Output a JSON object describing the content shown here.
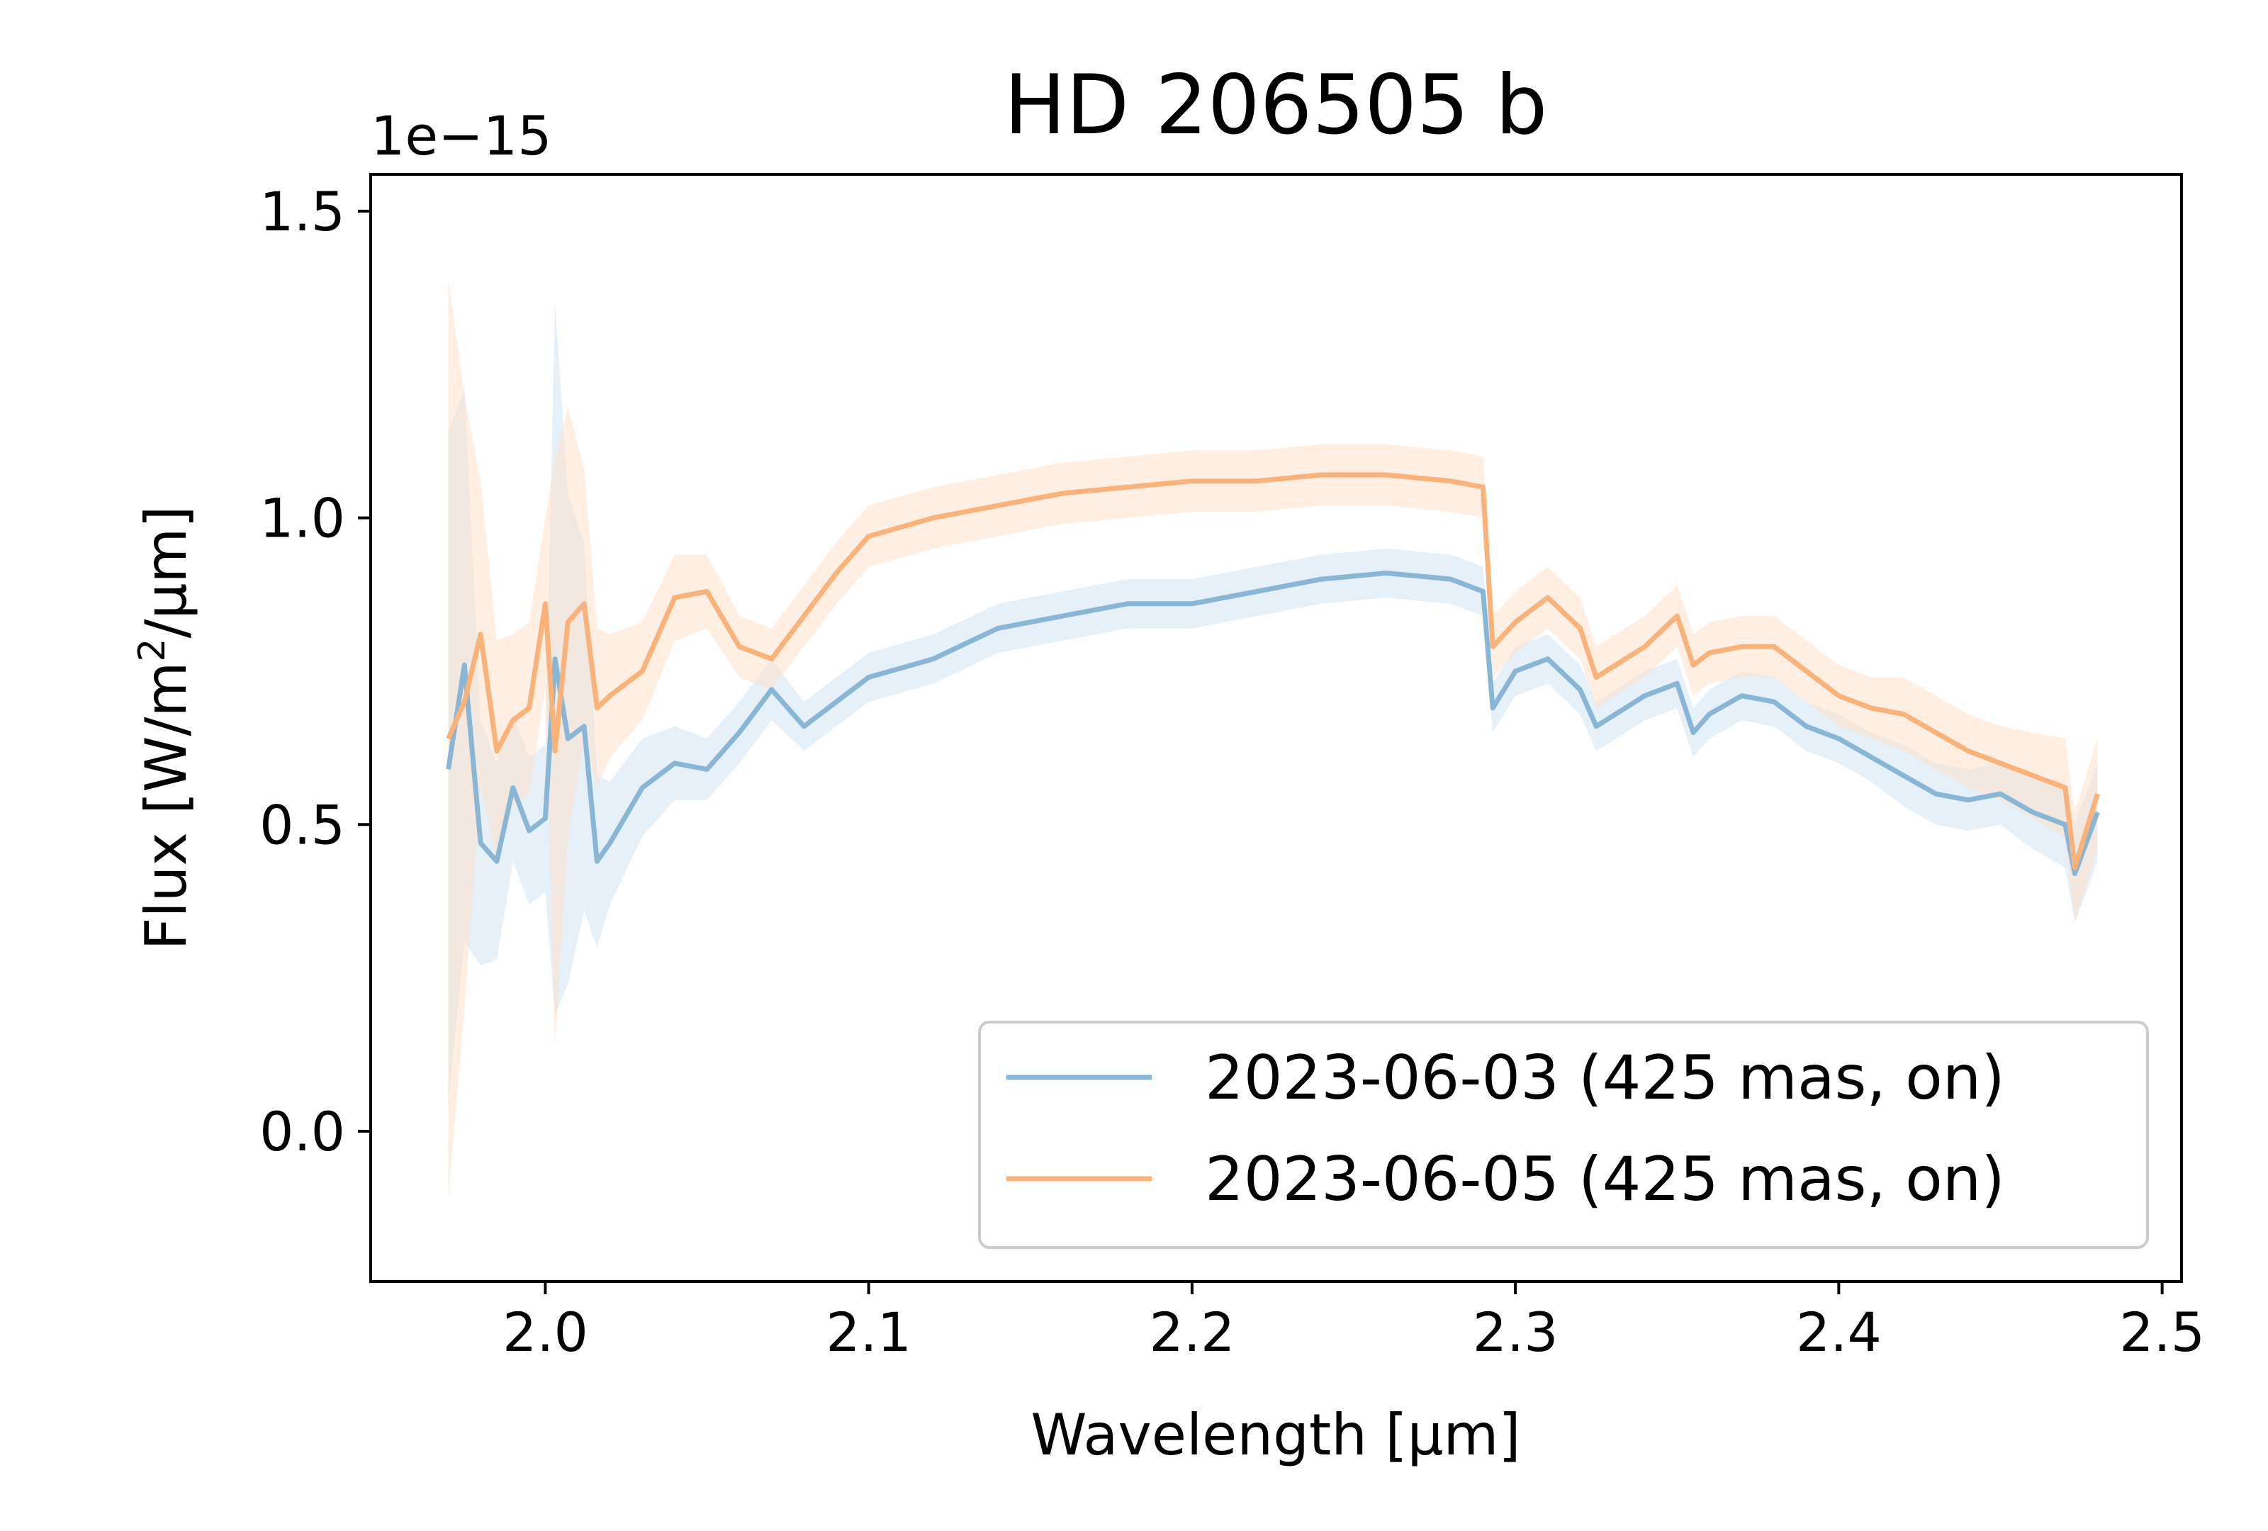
{
  "chart_data": {
    "type": "line",
    "title": "HD 206505 b",
    "xlabel": "Wavelength [µm]",
    "ylabel_main": "Flux [W/m",
    "ylabel_sup": "2",
    "ylabel_tail": "/µm]",
    "y_offset_label": "1e−15",
    "xlim": [
      1.946,
      2.506
    ],
    "ylim": [
      -0.245,
      1.56
    ],
    "xticks": [
      2.0,
      2.1,
      2.2,
      2.3,
      2.4,
      2.5
    ],
    "xtick_labels": [
      "2.0",
      "2.1",
      "2.2",
      "2.3",
      "2.4",
      "2.5"
    ],
    "yticks": [
      0.0,
      0.5,
      1.0,
      1.5
    ],
    "ytick_labels": [
      "0.0",
      "0.5",
      "1.0",
      "1.5"
    ],
    "legend_position": "lower right",
    "grid": false,
    "series": [
      {
        "name": "2023-06-03 (425 mas, on)",
        "color": "#8ab6d6",
        "band_color": "#cfe3f2",
        "x": [
          1.97,
          1.975,
          1.98,
          1.985,
          1.99,
          1.995,
          2.0,
          2.003,
          2.007,
          2.012,
          2.016,
          2.02,
          2.03,
          2.04,
          2.05,
          2.06,
          2.07,
          2.08,
          2.09,
          2.1,
          2.12,
          2.14,
          2.16,
          2.18,
          2.2,
          2.22,
          2.24,
          2.26,
          2.28,
          2.29,
          2.293,
          2.3,
          2.31,
          2.32,
          2.325,
          2.34,
          2.35,
          2.355,
          2.36,
          2.37,
          2.38,
          2.39,
          2.4,
          2.41,
          2.42,
          2.43,
          2.44,
          2.45,
          2.46,
          2.47,
          2.473,
          2.48
        ],
        "y": [
          0.59,
          0.76,
          0.47,
          0.44,
          0.56,
          0.49,
          0.51,
          0.77,
          0.64,
          0.66,
          0.44,
          0.47,
          0.56,
          0.6,
          0.59,
          0.65,
          0.72,
          0.66,
          0.7,
          0.74,
          0.77,
          0.82,
          0.84,
          0.86,
          0.86,
          0.88,
          0.9,
          0.91,
          0.9,
          0.88,
          0.69,
          0.75,
          0.77,
          0.72,
          0.66,
          0.71,
          0.73,
          0.65,
          0.68,
          0.71,
          0.7,
          0.66,
          0.64,
          0.61,
          0.58,
          0.55,
          0.54,
          0.55,
          0.52,
          0.5,
          0.42,
          0.52
        ],
        "err": [
          0.55,
          0.45,
          0.2,
          0.16,
          0.12,
          0.12,
          0.12,
          0.58,
          0.4,
          0.3,
          0.14,
          0.1,
          0.08,
          0.06,
          0.05,
          0.05,
          0.05,
          0.04,
          0.04,
          0.04,
          0.04,
          0.04,
          0.04,
          0.04,
          0.04,
          0.04,
          0.04,
          0.04,
          0.04,
          0.04,
          0.04,
          0.04,
          0.04,
          0.04,
          0.04,
          0.04,
          0.04,
          0.04,
          0.04,
          0.04,
          0.04,
          0.04,
          0.04,
          0.04,
          0.05,
          0.05,
          0.05,
          0.05,
          0.06,
          0.07,
          0.08,
          0.08
        ]
      },
      {
        "name": "2023-06-05 (425 mas, on)",
        "color": "#f9b27a",
        "band_color": "#fde1cb",
        "x": [
          1.97,
          1.975,
          1.98,
          1.985,
          1.99,
          1.995,
          2.0,
          2.003,
          2.007,
          2.012,
          2.016,
          2.02,
          2.03,
          2.04,
          2.05,
          2.06,
          2.07,
          2.08,
          2.09,
          2.1,
          2.12,
          2.14,
          2.16,
          2.18,
          2.2,
          2.22,
          2.24,
          2.26,
          2.28,
          2.29,
          2.293,
          2.3,
          2.31,
          2.32,
          2.325,
          2.34,
          2.35,
          2.355,
          2.36,
          2.37,
          2.38,
          2.39,
          2.4,
          2.41,
          2.42,
          2.43,
          2.44,
          2.45,
          2.46,
          2.47,
          2.473,
          2.48
        ],
        "y": [
          0.64,
          0.7,
          0.81,
          0.62,
          0.67,
          0.69,
          0.86,
          0.62,
          0.83,
          0.86,
          0.69,
          0.71,
          0.75,
          0.87,
          0.88,
          0.79,
          0.77,
          0.84,
          0.91,
          0.97,
          1.0,
          1.02,
          1.04,
          1.05,
          1.06,
          1.06,
          1.07,
          1.07,
          1.06,
          1.05,
          0.79,
          0.83,
          0.87,
          0.82,
          0.74,
          0.79,
          0.84,
          0.76,
          0.78,
          0.79,
          0.79,
          0.75,
          0.71,
          0.69,
          0.68,
          0.65,
          0.62,
          0.6,
          0.58,
          0.56,
          0.43,
          0.55
        ],
        "err": [
          0.75,
          0.5,
          0.25,
          0.18,
          0.14,
          0.14,
          0.14,
          0.48,
          0.35,
          0.22,
          0.13,
          0.1,
          0.08,
          0.07,
          0.06,
          0.05,
          0.05,
          0.05,
          0.05,
          0.05,
          0.05,
          0.05,
          0.05,
          0.05,
          0.05,
          0.05,
          0.05,
          0.05,
          0.05,
          0.05,
          0.05,
          0.05,
          0.05,
          0.05,
          0.05,
          0.05,
          0.05,
          0.05,
          0.05,
          0.05,
          0.05,
          0.05,
          0.05,
          0.05,
          0.06,
          0.06,
          0.06,
          0.06,
          0.07,
          0.08,
          0.09,
          0.09
        ]
      }
    ]
  }
}
